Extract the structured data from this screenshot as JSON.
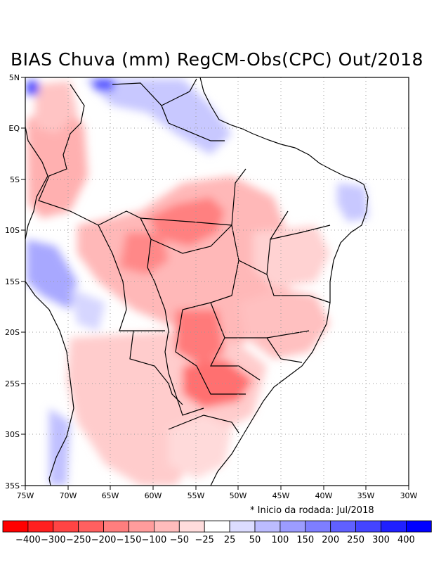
{
  "title": "BIAS Chuva (mm) RegCM-Obs(CPC) Out/2018",
  "axes": {
    "x_ticks": [
      "75W",
      "70W",
      "65W",
      "60W",
      "55W",
      "50W",
      "45W",
      "40W",
      "35W",
      "30W"
    ],
    "y_ticks": [
      "5N",
      "EQ",
      "5S",
      "10S",
      "15S",
      "20S",
      "25S",
      "30S",
      "35S"
    ],
    "lon_range": [
      -75,
      -30
    ],
    "lat_range": [
      -35,
      5
    ]
  },
  "note": "* Inicio da rodada: Jul/2018",
  "legend": {
    "labels": [
      "-400",
      "-300",
      "-250",
      "-200",
      "-150",
      "-100",
      "-50",
      "-25",
      "25",
      "50",
      "100",
      "150",
      "200",
      "250",
      "300",
      "400"
    ],
    "colors": [
      "#ff0000",
      "#ff2020",
      "#ff4444",
      "#ff6060",
      "#ff7e7e",
      "#ff9c9c",
      "#ffbcbc",
      "#ffdcdc",
      "#ffffff",
      "#dcdcff",
      "#bcbcff",
      "#9c9cff",
      "#7e7eff",
      "#6060ff",
      "#4444ff",
      "#2020ff",
      "#0000ff"
    ]
  }
}
